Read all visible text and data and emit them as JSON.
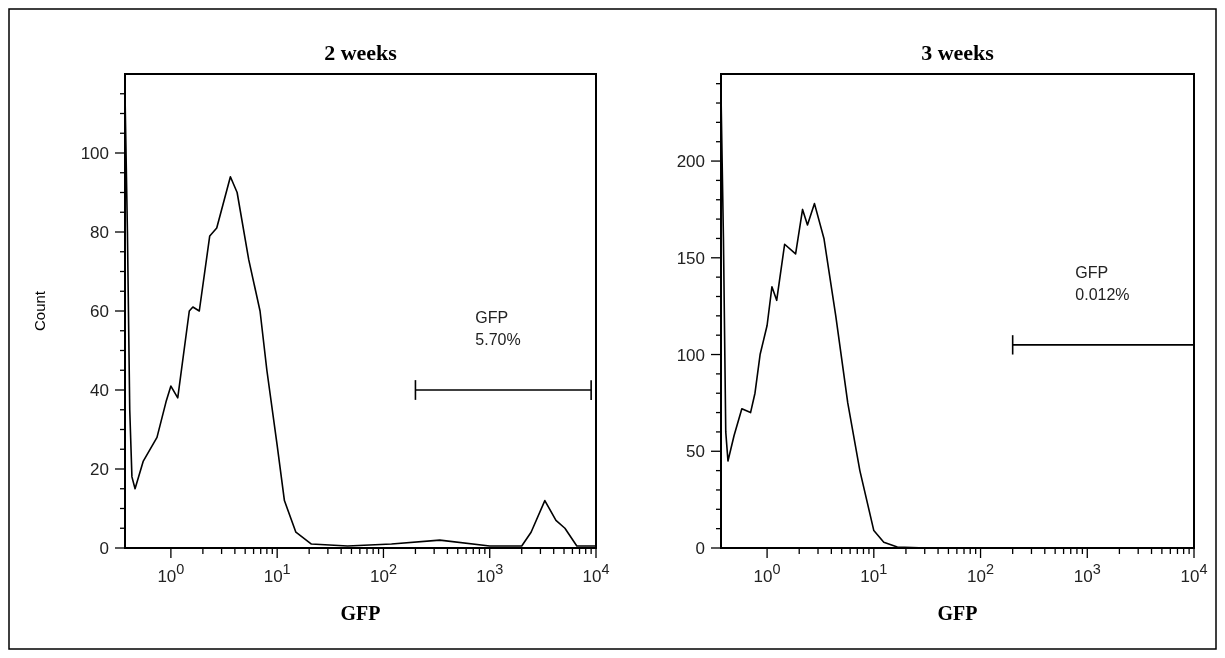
{
  "chart_data": [
    {
      "type": "line",
      "title": "2 weeks",
      "xlabel": "GFP",
      "ylabel": "Count",
      "log": "x",
      "xlim": [
        0.37,
        10000
      ],
      "ylim": [
        0,
        120
      ],
      "xticks": [
        {
          "value": 1,
          "label": "10$^{0}$"
        },
        {
          "value": 2,
          "label": null
        },
        {
          "value": 3,
          "label": null
        },
        {
          "value": 4,
          "label": null
        },
        {
          "value": 5,
          "label": null
        },
        {
          "value": 6,
          "label": null
        },
        {
          "value": 7,
          "label": null
        },
        {
          "value": 8,
          "label": null
        },
        {
          "value": 9,
          "label": null
        },
        {
          "value": 10,
          "label": "10$^{1}$"
        },
        {
          "value": 20,
          "label": null
        },
        {
          "value": 30,
          "label": null
        },
        {
          "value": 40,
          "label": null
        },
        {
          "value": 50,
          "label": null
        },
        {
          "value": 60,
          "label": null
        },
        {
          "value": 70,
          "label": null
        },
        {
          "value": 80,
          "label": null
        },
        {
          "value": 90,
          "label": null
        },
        {
          "value": 100,
          "label": "10$^{2}$"
        },
        {
          "value": 200,
          "label": null
        },
        {
          "value": 300,
          "label": null
        },
        {
          "value": 400,
          "label": null
        },
        {
          "value": 500,
          "label": null
        },
        {
          "value": 600,
          "label": null
        },
        {
          "value": 700,
          "label": null
        },
        {
          "value": 800,
          "label": null
        },
        {
          "value": 900,
          "label": null
        },
        {
          "value": 1000,
          "label": "10$^{3}$"
        },
        {
          "value": 2000,
          "label": null
        },
        {
          "value": 3000,
          "label": null
        },
        {
          "value": 4000,
          "label": null
        },
        {
          "value": 5000,
          "label": null
        },
        {
          "value": 6000,
          "label": null
        },
        {
          "value": 7000,
          "label": null
        },
        {
          "value": 8000,
          "label": null
        },
        {
          "value": 9000,
          "label": null
        },
        {
          "value": 10000,
          "label": "10$^{4}$"
        }
      ],
      "yticks": [
        0,
        {
          "value": 5,
          "label": null
        },
        {
          "value": 10,
          "label": null
        },
        {
          "value": 15,
          "label": null
        },
        20,
        {
          "value": 25,
          "label": null
        },
        {
          "value": 30,
          "label": null
        },
        {
          "value": 35,
          "label": null
        },
        40,
        {
          "value": 45,
          "label": null
        },
        {
          "value": 50,
          "label": null
        },
        {
          "value": 55,
          "label": null
        },
        60,
        {
          "value": 65,
          "label": null
        },
        {
          "value": 70,
          "label": null
        },
        {
          "value": 75,
          "label": null
        },
        80,
        {
          "value": 85,
          "label": null
        },
        {
          "value": 90,
          "label": null
        },
        {
          "value": 95,
          "label": null
        },
        100,
        {
          "value": 105,
          "label": null
        },
        {
          "value": 110,
          "label": null
        },
        {
          "value": 115,
          "label": null
        }
      ],
      "annotations": [
        "GFP\n5.70%"
      ],
      "series": [
        {
          "color": "#000000",
          "x": [
            0.37,
            0.39,
            0.41,
            0.43,
            0.46,
            0.55,
            0.74,
            0.9,
            1.0,
            1.16,
            1.49,
            1.61,
            1.85,
            2.32,
            2.7,
            3.63,
            4.2,
            5.4,
            6.9,
            8.0,
            10,
            11.7,
            15,
            21,
            46,
            119,
            339,
            1000,
            2000,
            2450,
            3300,
            4200,
            5100,
            6600,
            10000
          ],
          "values": [
            115,
            80,
            35,
            18,
            15,
            22,
            28,
            37,
            41,
            38,
            60,
            61,
            60,
            79,
            81,
            94,
            90,
            73,
            60,
            45,
            26,
            12,
            4,
            1,
            0.5,
            1,
            2,
            0.5,
            0.5,
            4,
            12,
            7,
            5,
            0.5,
            0.5
          ]
        },
        {
          "color": "#000000",
          "x": [
            200,
            9000
          ],
          "values": [
            40,
            40
          ],
          "errors": [
            2.5,
            2.5
          ]
        }
      ]
    },
    {
      "type": "line",
      "title": "3 weeks",
      "xlabel": "GFP",
      "log": "x",
      "xlim": [
        0.37,
        10000
      ],
      "ylim": [
        0,
        245
      ],
      "xticks": [
        {
          "value": 1,
          "label": "10$^{0}$"
        },
        {
          "value": 2,
          "label": null
        },
        {
          "value": 3,
          "label": null
        },
        {
          "value": 4,
          "label": null
        },
        {
          "value": 5,
          "label": null
        },
        {
          "value": 6,
          "label": null
        },
        {
          "value": 7,
          "label": null
        },
        {
          "value": 8,
          "label": null
        },
        {
          "value": 9,
          "label": null
        },
        {
          "value": 10,
          "label": "10$^{1}$"
        },
        {
          "value": 20,
          "label": null
        },
        {
          "value": 30,
          "label": null
        },
        {
          "value": 40,
          "label": null
        },
        {
          "value": 50,
          "label": null
        },
        {
          "value": 60,
          "label": null
        },
        {
          "value": 70,
          "label": null
        },
        {
          "value": 80,
          "label": null
        },
        {
          "value": 90,
          "label": null
        },
        {
          "value": 100,
          "label": "10$^{2}$"
        },
        {
          "value": 200,
          "label": null
        },
        {
          "value": 300,
          "label": null
        },
        {
          "value": 400,
          "label": null
        },
        {
          "value": 500,
          "label": null
        },
        {
          "value": 600,
          "label": null
        },
        {
          "value": 700,
          "label": null
        },
        {
          "value": 800,
          "label": null
        },
        {
          "value": 900,
          "label": null
        },
        {
          "value": 1000,
          "label": "10$^{3}$"
        },
        {
          "value": 2000,
          "label": null
        },
        {
          "value": 3000,
          "label": null
        },
        {
          "value": 4000,
          "label": null
        },
        {
          "value": 5000,
          "label": null
        },
        {
          "value": 6000,
          "label": null
        },
        {
          "value": 7000,
          "label": null
        },
        {
          "value": 8000,
          "label": null
        },
        {
          "value": 9000,
          "label": null
        },
        {
          "value": 10000,
          "label": "10$^{4}$"
        }
      ],
      "yticks": [
        0,
        {
          "value": 10,
          "label": null
        },
        {
          "value": 20,
          "label": null
        },
        {
          "value": 30,
          "label": null
        },
        {
          "value": 40,
          "label": null
        },
        50,
        {
          "value": 60,
          "label": null
        },
        {
          "value": 70,
          "label": null
        },
        {
          "value": 80,
          "label": null
        },
        {
          "value": 90,
          "label": null
        },
        100,
        {
          "value": 110,
          "label": null
        },
        {
          "value": 120,
          "label": null
        },
        {
          "value": 130,
          "label": null
        },
        {
          "value": 140,
          "label": null
        },
        150,
        {
          "value": 160,
          "label": null
        },
        {
          "value": 170,
          "label": null
        },
        {
          "value": 180,
          "label": null
        },
        {
          "value": 190,
          "label": null
        },
        200,
        {
          "value": 210,
          "label": null
        },
        {
          "value": 220,
          "label": null
        },
        {
          "value": 230,
          "label": null
        },
        {
          "value": 240,
          "label": null
        }
      ],
      "annotations": [
        "GFP\n0.012%"
      ],
      "series": [
        {
          "color": "#000000",
          "x": [
            0.37,
            0.39,
            0.41,
            0.43,
            0.49,
            0.58,
            0.7,
            0.77,
            0.86,
            1.0,
            1.11,
            1.23,
            1.46,
            1.85,
            2.15,
            2.39,
            2.78,
            3.41,
            4.4,
            5.7,
            7.4,
            10,
            12.4,
            16.6,
            31,
            10000
          ],
          "values": [
            235,
            160,
            60,
            45,
            58,
            72,
            70,
            80,
            100,
            115,
            135,
            128,
            157,
            152,
            175,
            167,
            178,
            160,
            120,
            75,
            40,
            9,
            3,
            0.5,
            0,
            0
          ]
        },
        {
          "color": "#000000",
          "x": [
            200,
            10000
          ],
          "values": [
            105,
            105
          ],
          "errors": [
            5,
            5
          ]
        }
      ]
    }
  ]
}
